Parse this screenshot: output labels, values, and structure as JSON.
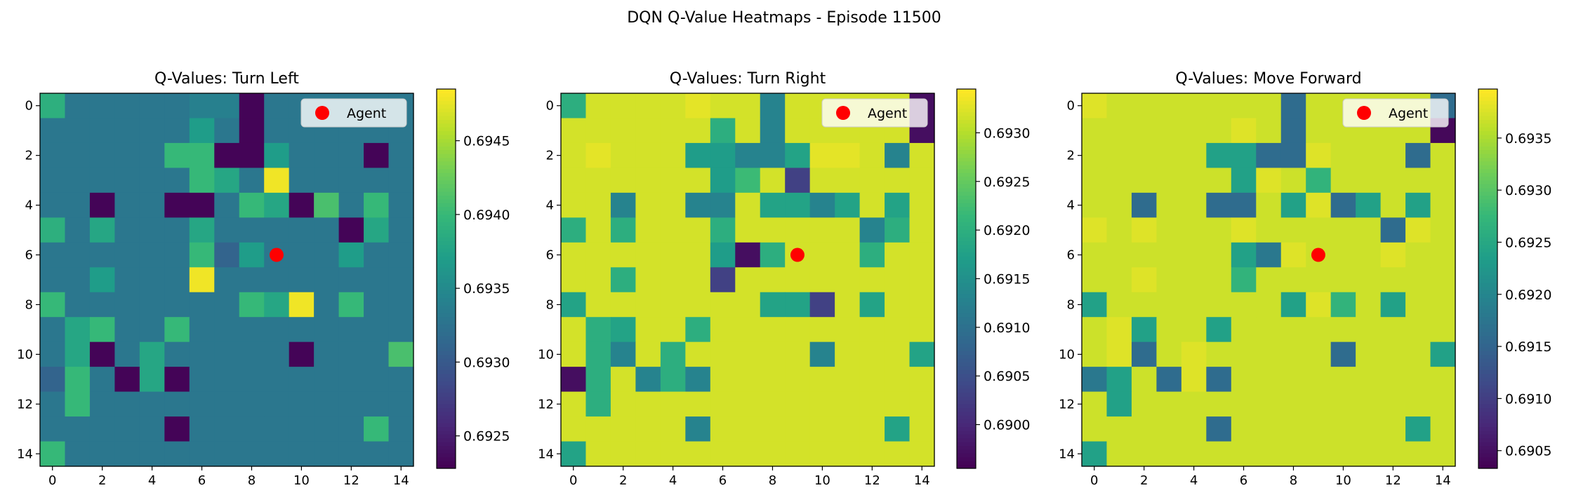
{
  "figure_title": "DQN Q-Value Heatmaps - Episode 11500",
  "colormap": "viridis",
  "marker_color": "#ff0000",
  "chart_data": [
    {
      "type": "heatmap",
      "title": "Q-Values: Turn Left",
      "x_ticks": [
        "0",
        "2",
        "4",
        "6",
        "8",
        "10",
        "12",
        "14"
      ],
      "y_ticks": [
        "0",
        "2",
        "4",
        "6",
        "8",
        "10",
        "12",
        "14"
      ],
      "colorbar_ticks": [
        "0.6925",
        "0.6930",
        "0.6935",
        "0.6940",
        "0.6945"
      ],
      "vmin": 0.69228,
      "vmax": 0.69485,
      "legend": "Agent",
      "agent": {
        "x": 9,
        "y": 6
      },
      "values": [
        [
          0.6939,
          0.6933,
          0.6933,
          0.6933,
          0.6933,
          0.6933,
          0.6934,
          0.6934,
          0.6923,
          0.6933,
          0.6933,
          0.6933,
          0.6933,
          0.6933,
          0.6933
        ],
        [
          0.6933,
          0.6933,
          0.6933,
          0.6933,
          0.6933,
          0.6933,
          0.6937,
          0.6933,
          0.6923,
          0.6933,
          0.6933,
          0.6933,
          0.6933,
          0.6933,
          0.6933
        ],
        [
          0.6933,
          0.6933,
          0.6933,
          0.6933,
          0.6933,
          0.694,
          0.694,
          0.6923,
          0.6923,
          0.6937,
          0.6933,
          0.6933,
          0.6933,
          0.6923,
          0.6933
        ],
        [
          0.6933,
          0.6933,
          0.6933,
          0.6933,
          0.6933,
          0.6933,
          0.694,
          0.6938,
          0.6933,
          0.6948,
          0.6933,
          0.6933,
          0.6933,
          0.6933,
          0.6933
        ],
        [
          0.6933,
          0.6933,
          0.6923,
          0.6933,
          0.6933,
          0.6923,
          0.6923,
          0.6933,
          0.694,
          0.6938,
          0.6923,
          0.6941,
          0.6933,
          0.694,
          0.6933
        ],
        [
          0.6939,
          0.6933,
          0.6938,
          0.6933,
          0.6933,
          0.6933,
          0.6938,
          0.6933,
          0.6933,
          0.6933,
          0.6933,
          0.6933,
          0.6923,
          0.6938,
          0.6933
        ],
        [
          0.6933,
          0.6933,
          0.6933,
          0.6933,
          0.6933,
          0.6933,
          0.694,
          0.6931,
          0.6937,
          0.6933,
          0.6933,
          0.6933,
          0.6937,
          0.6933,
          0.6933
        ],
        [
          0.6933,
          0.6933,
          0.6937,
          0.6933,
          0.6933,
          0.6933,
          0.6948,
          0.6933,
          0.6933,
          0.6933,
          0.6933,
          0.6933,
          0.6933,
          0.6933,
          0.6933
        ],
        [
          0.694,
          0.6933,
          0.6933,
          0.6933,
          0.6933,
          0.6933,
          0.6933,
          0.6933,
          0.694,
          0.6938,
          0.6948,
          0.6933,
          0.694,
          0.6933,
          0.6933
        ],
        [
          0.6933,
          0.6938,
          0.694,
          0.6933,
          0.6933,
          0.694,
          0.6933,
          0.6933,
          0.6933,
          0.6933,
          0.6933,
          0.6933,
          0.6933,
          0.6933,
          0.6933
        ],
        [
          0.6933,
          0.6938,
          0.6923,
          0.6933,
          0.6938,
          0.6933,
          0.6933,
          0.6933,
          0.6933,
          0.6933,
          0.6923,
          0.6933,
          0.6933,
          0.6933,
          0.6941
        ],
        [
          0.6931,
          0.694,
          0.6933,
          0.6923,
          0.6938,
          0.6923,
          0.6933,
          0.6933,
          0.6933,
          0.6933,
          0.6933,
          0.6933,
          0.6933,
          0.6933,
          0.6933
        ],
        [
          0.6933,
          0.694,
          0.6933,
          0.6933,
          0.6933,
          0.6933,
          0.6933,
          0.6933,
          0.6933,
          0.6933,
          0.6933,
          0.6933,
          0.6933,
          0.6933,
          0.6933
        ],
        [
          0.6933,
          0.6933,
          0.6933,
          0.6933,
          0.6933,
          0.6923,
          0.6933,
          0.6933,
          0.6933,
          0.6933,
          0.6933,
          0.6933,
          0.6933,
          0.694,
          0.6933
        ],
        [
          0.694,
          0.6933,
          0.6933,
          0.6933,
          0.6933,
          0.6933,
          0.6933,
          0.6933,
          0.6933,
          0.6933,
          0.6933,
          0.6933,
          0.6933,
          0.6933,
          0.6933
        ]
      ]
    },
    {
      "type": "heatmap",
      "title": "Q-Values: Turn Right",
      "x_ticks": [
        "0",
        "2",
        "4",
        "6",
        "8",
        "10",
        "12",
        "14"
      ],
      "y_ticks": [
        "0",
        "2",
        "4",
        "6",
        "8",
        "10",
        "12",
        "14"
      ],
      "colorbar_ticks": [
        "0.6900",
        "0.6905",
        "0.6910",
        "0.6915",
        "0.6920",
        "0.6925",
        "0.6930"
      ],
      "vmin": 0.68955,
      "vmax": 0.69345,
      "legend": "Agent",
      "agent": {
        "x": 9,
        "y": 6
      },
      "values": [
        [
          0.692,
          0.6932,
          0.6932,
          0.6932,
          0.6932,
          0.6933,
          0.6932,
          0.6932,
          0.6913,
          0.6932,
          0.6932,
          0.6932,
          0.6932,
          0.6932,
          0.6897
        ],
        [
          0.6932,
          0.6932,
          0.6932,
          0.6932,
          0.6932,
          0.6932,
          0.692,
          0.6932,
          0.6913,
          0.6932,
          0.6932,
          0.6932,
          0.6932,
          0.6932,
          0.6897
        ],
        [
          0.6932,
          0.6933,
          0.6932,
          0.6932,
          0.6932,
          0.6917,
          0.6917,
          0.6913,
          0.6913,
          0.6918,
          0.6933,
          0.6933,
          0.6932,
          0.6913,
          0.6932
        ],
        [
          0.6932,
          0.6932,
          0.6932,
          0.6932,
          0.6932,
          0.6932,
          0.6917,
          0.6922,
          0.6932,
          0.6903,
          0.6932,
          0.6932,
          0.6932,
          0.6932,
          0.6932
        ],
        [
          0.6932,
          0.6932,
          0.6913,
          0.6932,
          0.6932,
          0.6913,
          0.6913,
          0.6932,
          0.6918,
          0.6918,
          0.6913,
          0.6918,
          0.6932,
          0.6918,
          0.6932
        ],
        [
          0.692,
          0.6932,
          0.692,
          0.6932,
          0.6932,
          0.6932,
          0.692,
          0.6932,
          0.6932,
          0.6932,
          0.6932,
          0.6932,
          0.6913,
          0.692,
          0.6932
        ],
        [
          0.6932,
          0.6932,
          0.6932,
          0.6932,
          0.6932,
          0.6932,
          0.6917,
          0.6897,
          0.692,
          0.6932,
          0.6932,
          0.6932,
          0.692,
          0.6932,
          0.6932
        ],
        [
          0.6932,
          0.6932,
          0.692,
          0.6932,
          0.6932,
          0.6932,
          0.6903,
          0.6932,
          0.6932,
          0.6932,
          0.6932,
          0.6932,
          0.6932,
          0.6932,
          0.6932
        ],
        [
          0.6918,
          0.6932,
          0.6932,
          0.6932,
          0.6932,
          0.6932,
          0.6932,
          0.6932,
          0.6918,
          0.6918,
          0.6903,
          0.6932,
          0.6918,
          0.6932,
          0.6932
        ],
        [
          0.6932,
          0.692,
          0.6918,
          0.6932,
          0.6932,
          0.692,
          0.6932,
          0.6932,
          0.6932,
          0.6932,
          0.6932,
          0.6932,
          0.6932,
          0.6932,
          0.6932
        ],
        [
          0.6932,
          0.692,
          0.6913,
          0.6932,
          0.692,
          0.6932,
          0.6932,
          0.6932,
          0.6932,
          0.6932,
          0.6913,
          0.6932,
          0.6932,
          0.6932,
          0.6918
        ],
        [
          0.6897,
          0.692,
          0.6932,
          0.6913,
          0.692,
          0.6913,
          0.6932,
          0.6932,
          0.6932,
          0.6932,
          0.6932,
          0.6932,
          0.6932,
          0.6932,
          0.6932
        ],
        [
          0.6932,
          0.692,
          0.6932,
          0.6932,
          0.6932,
          0.6932,
          0.6932,
          0.6932,
          0.6932,
          0.6932,
          0.6932,
          0.6932,
          0.6932,
          0.6932,
          0.6932
        ],
        [
          0.6932,
          0.6932,
          0.6932,
          0.6932,
          0.6932,
          0.6913,
          0.6932,
          0.6932,
          0.6932,
          0.6932,
          0.6932,
          0.6932,
          0.6932,
          0.6918,
          0.6932
        ],
        [
          0.6918,
          0.6932,
          0.6932,
          0.6932,
          0.6932,
          0.6932,
          0.6932,
          0.6932,
          0.6932,
          0.6932,
          0.6932,
          0.6932,
          0.6932,
          0.6932,
          0.6932
        ]
      ]
    },
    {
      "type": "heatmap",
      "title": "Q-Values: Move Forward",
      "x_ticks": [
        "0",
        "2",
        "4",
        "6",
        "8",
        "10",
        "12",
        "14"
      ],
      "y_ticks": [
        "0",
        "2",
        "4",
        "6",
        "8",
        "10",
        "12",
        "14"
      ],
      "colorbar_ticks": [
        "0.6905",
        "0.6910",
        "0.6915",
        "0.6920",
        "0.6925",
        "0.6930",
        "0.6935"
      ],
      "vmin": 0.69033,
      "vmax": 0.69397,
      "legend": "Agent",
      "agent": {
        "x": 9,
        "y": 6
      },
      "values": [
        [
          0.6938,
          0.6937,
          0.6937,
          0.6937,
          0.6937,
          0.6937,
          0.6937,
          0.6937,
          0.6916,
          0.6937,
          0.6937,
          0.6937,
          0.6937,
          0.6937,
          0.6916
        ],
        [
          0.6937,
          0.6937,
          0.6937,
          0.6937,
          0.6937,
          0.6937,
          0.6938,
          0.6937,
          0.6916,
          0.6937,
          0.6937,
          0.6937,
          0.6937,
          0.6937,
          0.6904
        ],
        [
          0.6937,
          0.6937,
          0.6937,
          0.6937,
          0.6937,
          0.6924,
          0.6924,
          0.6916,
          0.6916,
          0.6938,
          0.6937,
          0.6937,
          0.6937,
          0.6916,
          0.6937
        ],
        [
          0.6937,
          0.6937,
          0.6937,
          0.6937,
          0.6937,
          0.6937,
          0.6924,
          0.6938,
          0.6937,
          0.6927,
          0.6937,
          0.6937,
          0.6937,
          0.6937,
          0.6937
        ],
        [
          0.6937,
          0.6937,
          0.6916,
          0.6937,
          0.6937,
          0.6916,
          0.6916,
          0.6937,
          0.6924,
          0.6938,
          0.6916,
          0.6924,
          0.6937,
          0.6924,
          0.6937
        ],
        [
          0.6938,
          0.6937,
          0.6938,
          0.6937,
          0.6937,
          0.6937,
          0.6938,
          0.6937,
          0.6937,
          0.6937,
          0.6937,
          0.6937,
          0.6916,
          0.6938,
          0.6937
        ],
        [
          0.6937,
          0.6937,
          0.6937,
          0.6937,
          0.6937,
          0.6937,
          0.6924,
          0.6918,
          0.6938,
          0.6937,
          0.6937,
          0.6937,
          0.6938,
          0.6937,
          0.6937
        ],
        [
          0.6937,
          0.6937,
          0.6938,
          0.6937,
          0.6937,
          0.6937,
          0.6927,
          0.6937,
          0.6937,
          0.6937,
          0.6937,
          0.6937,
          0.6937,
          0.6937,
          0.6937
        ],
        [
          0.6924,
          0.6937,
          0.6937,
          0.6937,
          0.6937,
          0.6937,
          0.6937,
          0.6937,
          0.6924,
          0.6938,
          0.6927,
          0.6937,
          0.6924,
          0.6937,
          0.6937
        ],
        [
          0.6937,
          0.6938,
          0.6924,
          0.6937,
          0.6937,
          0.6924,
          0.6937,
          0.6937,
          0.6937,
          0.6937,
          0.6937,
          0.6937,
          0.6937,
          0.6937,
          0.6937
        ],
        [
          0.6937,
          0.6938,
          0.6916,
          0.6937,
          0.6938,
          0.6937,
          0.6937,
          0.6937,
          0.6937,
          0.6937,
          0.6916,
          0.6937,
          0.6937,
          0.6937,
          0.6924
        ],
        [
          0.6918,
          0.6924,
          0.6937,
          0.6916,
          0.6938,
          0.6916,
          0.6937,
          0.6937,
          0.6937,
          0.6937,
          0.6937,
          0.6937,
          0.6937,
          0.6937,
          0.6937
        ],
        [
          0.6937,
          0.6924,
          0.6937,
          0.6937,
          0.6937,
          0.6937,
          0.6937,
          0.6937,
          0.6937,
          0.6937,
          0.6937,
          0.6937,
          0.6937,
          0.6937,
          0.6937
        ],
        [
          0.6937,
          0.6937,
          0.6937,
          0.6937,
          0.6937,
          0.6916,
          0.6937,
          0.6937,
          0.6937,
          0.6937,
          0.6937,
          0.6937,
          0.6937,
          0.6924,
          0.6937
        ],
        [
          0.6924,
          0.6937,
          0.6937,
          0.6937,
          0.6937,
          0.6937,
          0.6937,
          0.6937,
          0.6937,
          0.6937,
          0.6937,
          0.6937,
          0.6937,
          0.6937,
          0.6937
        ]
      ]
    }
  ]
}
